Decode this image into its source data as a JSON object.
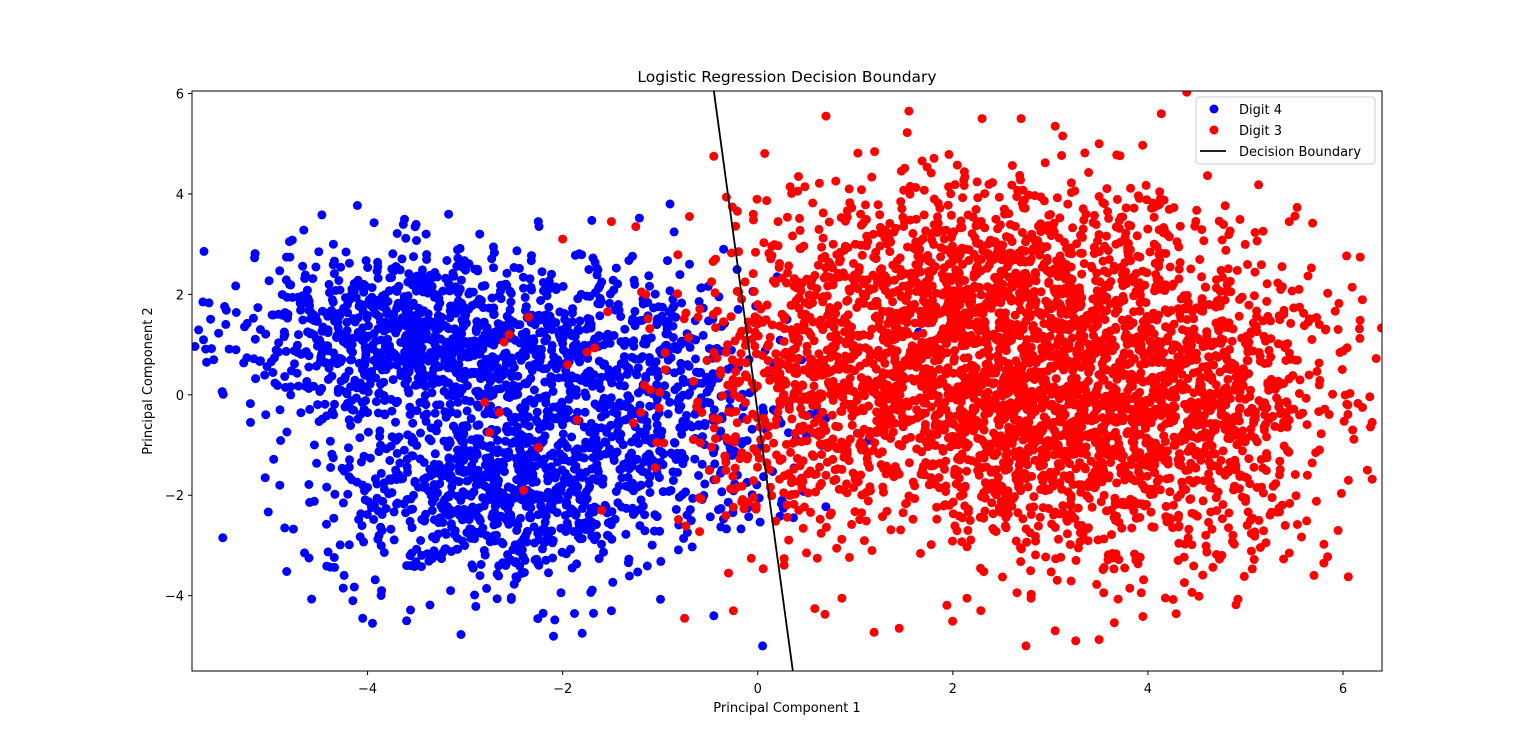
{
  "chart_data": {
    "type": "scatter",
    "title": "Logistic Regression Decision Boundary",
    "xlabel": "Principal Component 1",
    "ylabel": "Principal Component 2",
    "xlim": [
      -5.8,
      6.4
    ],
    "ylim": [
      -5.5,
      6.05
    ],
    "xticks": [
      -4,
      -2,
      0,
      2,
      4,
      6
    ],
    "yticks": [
      -4,
      -2,
      0,
      2,
      4,
      6
    ],
    "grid": false,
    "legend_position": "top-right",
    "series": [
      {
        "name": "Digit 4",
        "color": "#0000ff",
        "clusters": [
          {
            "cx": -3.5,
            "cy": 1.2,
            "sx": 0.9,
            "sy": 0.85,
            "n": 950
          },
          {
            "cx": -2.6,
            "cy": -1.9,
            "sx": 0.9,
            "sy": 0.95,
            "n": 900
          },
          {
            "cx": -1.6,
            "cy": 0.4,
            "sx": 0.75,
            "sy": 1.1,
            "n": 450
          },
          {
            "cx": -0.6,
            "cy": -0.4,
            "sx": 0.55,
            "sy": 1.2,
            "n": 180
          }
        ],
        "points": [
          [
            -5.65,
            0.65
          ],
          [
            -5.6,
            0.92
          ],
          [
            -5.48,
            0.01
          ],
          [
            -5.2,
            -0.55
          ],
          [
            -5.05,
            -1.65
          ],
          [
            -4.9,
            -1.8
          ],
          [
            -4.85,
            -2.65
          ],
          [
            -4.8,
            3.05
          ],
          [
            -4.6,
            -3.25
          ],
          [
            -4.5,
            2.85
          ],
          [
            -4.35,
            3.0
          ],
          [
            -4.25,
            -3.85
          ],
          [
            -4.15,
            -4.1
          ],
          [
            -4.05,
            -4.45
          ],
          [
            -3.95,
            -4.55
          ],
          [
            -3.6,
            -4.5
          ],
          [
            -3.4,
            3.2
          ],
          [
            -2.85,
            3.2
          ],
          [
            -2.25,
            3.45
          ],
          [
            -2.2,
            -4.35
          ],
          [
            -1.8,
            -4.75
          ],
          [
            -1.5,
            -4.3
          ],
          [
            -0.9,
            3.8
          ],
          [
            -0.7,
            2.6
          ],
          [
            -0.45,
            -4.4
          ],
          [
            -0.35,
            2.9
          ],
          [
            -0.2,
            1.7
          ],
          [
            0.05,
            -5.0
          ],
          [
            0.2,
            2.35
          ],
          [
            0.3,
            1.5
          ],
          [
            0.45,
            0.7
          ],
          [
            0.6,
            -0.25
          ],
          [
            1.65,
            1.25
          ],
          [
            0.25,
            -2.1
          ],
          [
            -0.1,
            -2.25
          ]
        ]
      },
      {
        "name": "Digit 3",
        "color": "#ff0000",
        "clusters": [
          {
            "cx": 1.8,
            "cy": 0.8,
            "sx": 1.05,
            "sy": 1.45,
            "n": 1350
          },
          {
            "cx": 3.6,
            "cy": -0.6,
            "sx": 1.05,
            "sy": 1.45,
            "n": 1450
          },
          {
            "cx": 2.6,
            "cy": 2.5,
            "sx": 1.2,
            "sy": 1.0,
            "n": 550
          },
          {
            "cx": 0.3,
            "cy": -0.3,
            "sx": 0.5,
            "sy": 1.6,
            "n": 260
          },
          {
            "cx": 4.6,
            "cy": 0.6,
            "sx": 0.75,
            "sy": 1.1,
            "n": 300
          }
        ],
        "points": [
          [
            0.7,
            5.55
          ],
          [
            1.55,
            5.65
          ],
          [
            2.3,
            5.5
          ],
          [
            2.7,
            5.5
          ],
          [
            3.05,
            5.35
          ],
          [
            3.5,
            5.0
          ],
          [
            5.45,
            3.45
          ],
          [
            5.55,
            2.1
          ],
          [
            5.95,
            1.3
          ],
          [
            6.05,
            -0.2
          ],
          [
            6.1,
            -0.7
          ],
          [
            6.2,
            -0.25
          ],
          [
            6.25,
            -1.5
          ],
          [
            6.3,
            -1.68
          ],
          [
            6.3,
            -0.55
          ],
          [
            5.95,
            -2.7
          ],
          [
            5.45,
            -3.15
          ],
          [
            2.75,
            -5.0
          ],
          [
            3.05,
            -4.7
          ],
          [
            1.45,
            -4.65
          ],
          [
            -0.75,
            -4.45
          ],
          [
            -0.25,
            -4.3
          ],
          [
            -0.45,
            4.75
          ],
          [
            -0.7,
            3.55
          ],
          [
            -1.25,
            3.35
          ],
          [
            -1.5,
            3.45
          ],
          [
            -2.0,
            3.1
          ],
          [
            -2.35,
            1.55
          ],
          [
            -2.55,
            1.2
          ],
          [
            -2.6,
            1.05
          ],
          [
            -2.8,
            -0.15
          ],
          [
            -2.75,
            -0.75
          ],
          [
            -2.4,
            -1.9
          ],
          [
            -1.95,
            0.6
          ],
          [
            -1.85,
            -0.5
          ],
          [
            -1.75,
            0.85
          ],
          [
            -1.6,
            -2.3
          ],
          [
            -1.2,
            -0.35
          ],
          [
            -1.05,
            -1.45
          ],
          [
            -1.1,
            0.1
          ],
          [
            -0.95,
            0.5
          ],
          [
            -0.6,
            -2.05
          ],
          [
            -0.3,
            -3.55
          ],
          [
            -2.65,
            -0.35
          ],
          [
            -2.25,
            -1.05
          ]
        ]
      },
      {
        "name": "Decision Boundary",
        "color": "#000000",
        "type": "line",
        "x": [
          -0.45,
          0.36
        ],
        "y": [
          6.05,
          -5.5
        ]
      }
    ]
  }
}
